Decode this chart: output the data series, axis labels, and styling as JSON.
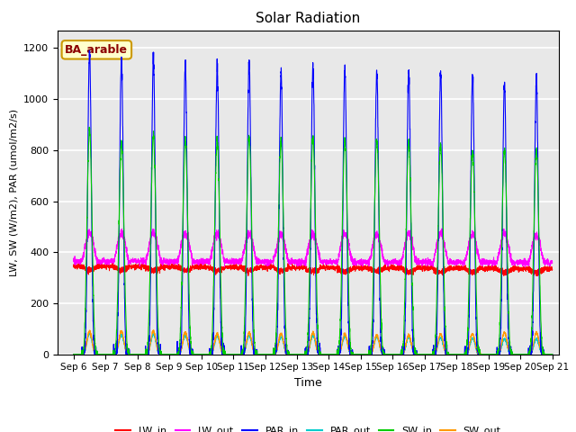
{
  "title": "Solar Radiation",
  "xlabel": "Time",
  "ylabel": "LW, SW (W/m2), PAR (umol/m2/s)",
  "annotation": "BA_arable",
  "xlim_days": [
    5.5,
    21.2
  ],
  "ylim": [
    0,
    1270
  ],
  "yticks": [
    0,
    200,
    400,
    600,
    800,
    1000,
    1200
  ],
  "xtick_labels": [
    "Sep 6",
    "Sep 7",
    "Sep 8",
    "Sep 9",
    "Sep 10",
    "Sep 11",
    "Sep 12",
    "Sep 13",
    "Sep 14",
    "Sep 15",
    "Sep 16",
    "Sep 17",
    "Sep 18",
    "Sep 19",
    "Sep 20",
    "Sep 21"
  ],
  "xtick_days": [
    6,
    7,
    8,
    9,
    10,
    11,
    12,
    13,
    14,
    15,
    16,
    17,
    18,
    19,
    20,
    21
  ],
  "colors": {
    "LW_in": "#ff0000",
    "LW_out": "#ff00ff",
    "PAR_in": "#0000ff",
    "PAR_out": "#00cccc",
    "SW_in": "#00cc00",
    "SW_out": "#ff9900"
  },
  "background_color": "#e8e8e8",
  "grid_color": "#ffffff",
  "PAR_in_peaks": [
    1190,
    1150,
    1160,
    1140,
    1130,
    1140,
    1110,
    1130,
    1120,
    1110,
    1110,
    1110,
    1100,
    1070,
    1080
  ],
  "SW_in_peaks": [
    880,
    830,
    860,
    840,
    835,
    850,
    835,
    850,
    845,
    840,
    835,
    820,
    800,
    800,
    800
  ],
  "PAR_out_peaks": [
    80,
    75,
    78,
    72,
    70,
    72,
    68,
    72,
    70,
    68,
    65,
    65,
    62,
    60,
    60
  ],
  "SW_out_peaks": [
    90,
    90,
    90,
    85,
    80,
    85,
    80,
    85,
    80,
    75,
    75,
    80,
    80,
    85,
    85
  ],
  "LW_in_base": 345,
  "LW_in_day_dip": 15,
  "LW_out_day_peak": 475,
  "LW_out_base": 365,
  "figsize": [
    6.4,
    4.8
  ],
  "dpi": 100
}
